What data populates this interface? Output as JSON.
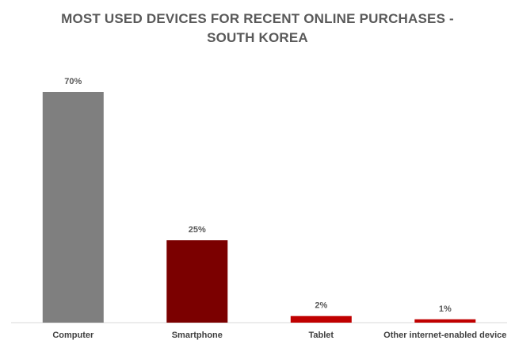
{
  "chart_data": {
    "type": "bar",
    "title_lines": [
      "MOST USED DEVICES FOR RECENT ONLINE PURCHASES -",
      "SOUTH KOREA"
    ],
    "categories": [
      "Computer",
      "Smartphone",
      "Tablet",
      "Other internet-enabled device"
    ],
    "values": [
      70,
      25,
      2,
      1
    ],
    "value_labels": [
      "70%",
      "25%",
      "2%",
      "1%"
    ],
    "colors": [
      "#7f7f7f",
      "#7b0000",
      "#c00000",
      "#c00000"
    ],
    "ylim": [
      0,
      70
    ],
    "grid": false,
    "legend": false
  }
}
